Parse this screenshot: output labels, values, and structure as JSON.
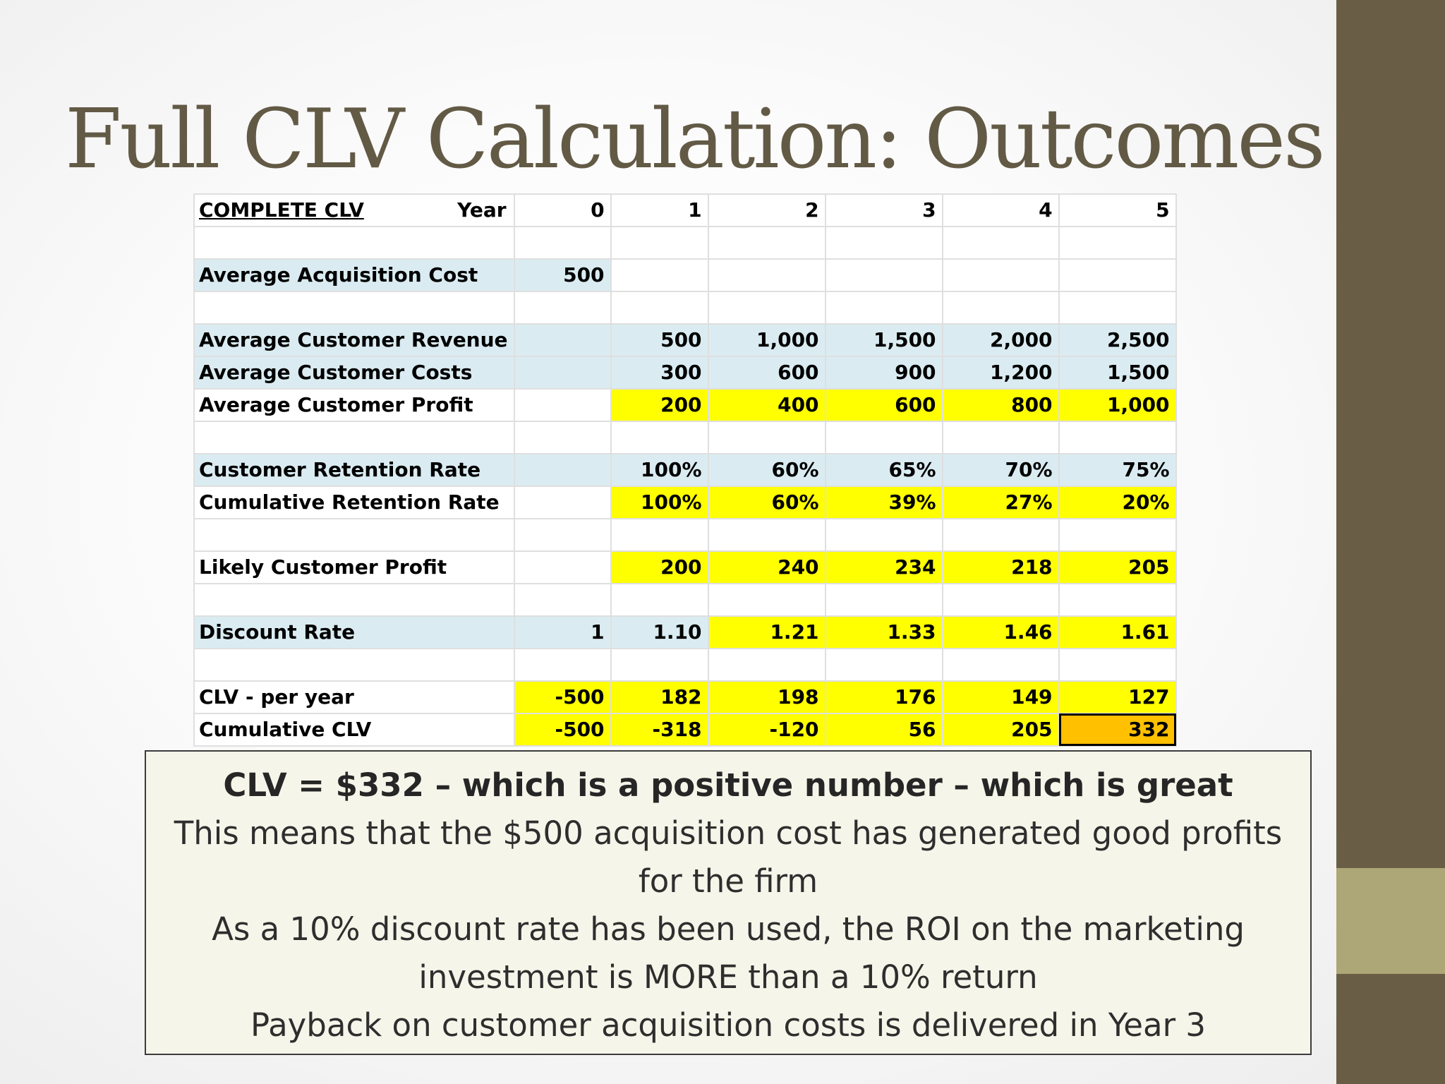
{
  "slide": {
    "title": "Full CLV Calculation: Outcomes",
    "colors": {
      "accent_bar": "#6a5d46",
      "accent_bar_highlight": "#ada676",
      "title": "#625a45"
    }
  },
  "table": {
    "header": {
      "label": "COMPLETE CLV",
      "year_label": "Year",
      "years": [
        "0",
        "1",
        "2",
        "3",
        "4",
        "5"
      ]
    },
    "rows": {
      "acquisition_cost": {
        "label": "Average Acquisition Cost",
        "values": [
          "500",
          "",
          "",
          "",
          "",
          ""
        ]
      },
      "revenue": {
        "label": "Average Customer Revenue",
        "values": [
          "",
          "500",
          "1,000",
          "1,500",
          "2,000",
          "2,500"
        ]
      },
      "costs": {
        "label": "Average Customer Costs",
        "values": [
          "",
          "300",
          "600",
          "900",
          "1,200",
          "1,500"
        ]
      },
      "profit": {
        "label": "Average Customer Profit",
        "values": [
          "",
          "200",
          "400",
          "600",
          "800",
          "1,000"
        ]
      },
      "retention": {
        "label": "Customer Retention Rate",
        "values": [
          "",
          "100%",
          "60%",
          "65%",
          "70%",
          "75%"
        ]
      },
      "cumulative_retention": {
        "label": "Cumulative Retention Rate",
        "values": [
          "",
          "100%",
          "60%",
          "39%",
          "27%",
          "20%"
        ]
      },
      "likely_profit": {
        "label": "Likely Customer Profit",
        "values": [
          "",
          "200",
          "240",
          "234",
          "218",
          "205"
        ]
      },
      "discount_rate": {
        "label": "Discount Rate",
        "values": [
          "1",
          "1.10",
          "1.21",
          "1.33",
          "1.46",
          "1.61"
        ]
      },
      "clv_per_year": {
        "label": "CLV - per year",
        "values": [
          "-500",
          "182",
          "198",
          "176",
          "149",
          "127"
        ]
      },
      "cumulative_clv": {
        "label": "Cumulative CLV",
        "values": [
          "-500",
          "-318",
          "-120",
          "56",
          "205",
          "332"
        ]
      }
    },
    "colors": {
      "input_fill": "#daecf2",
      "calc_fill": "#ffff00",
      "result_fill": "#ffc000"
    }
  },
  "summary": {
    "headline": "CLV = $332 – which is a positive number – which is great",
    "line1": "This means that the $500 acquisition cost has generated good profits",
    "line2": "for the firm",
    "line3": "As a 10% discount rate has been used, the ROI on the marketing",
    "line4": "investment is MORE than a 10% return",
    "line5": "Payback on customer acquisition costs is delivered in Year 3"
  }
}
